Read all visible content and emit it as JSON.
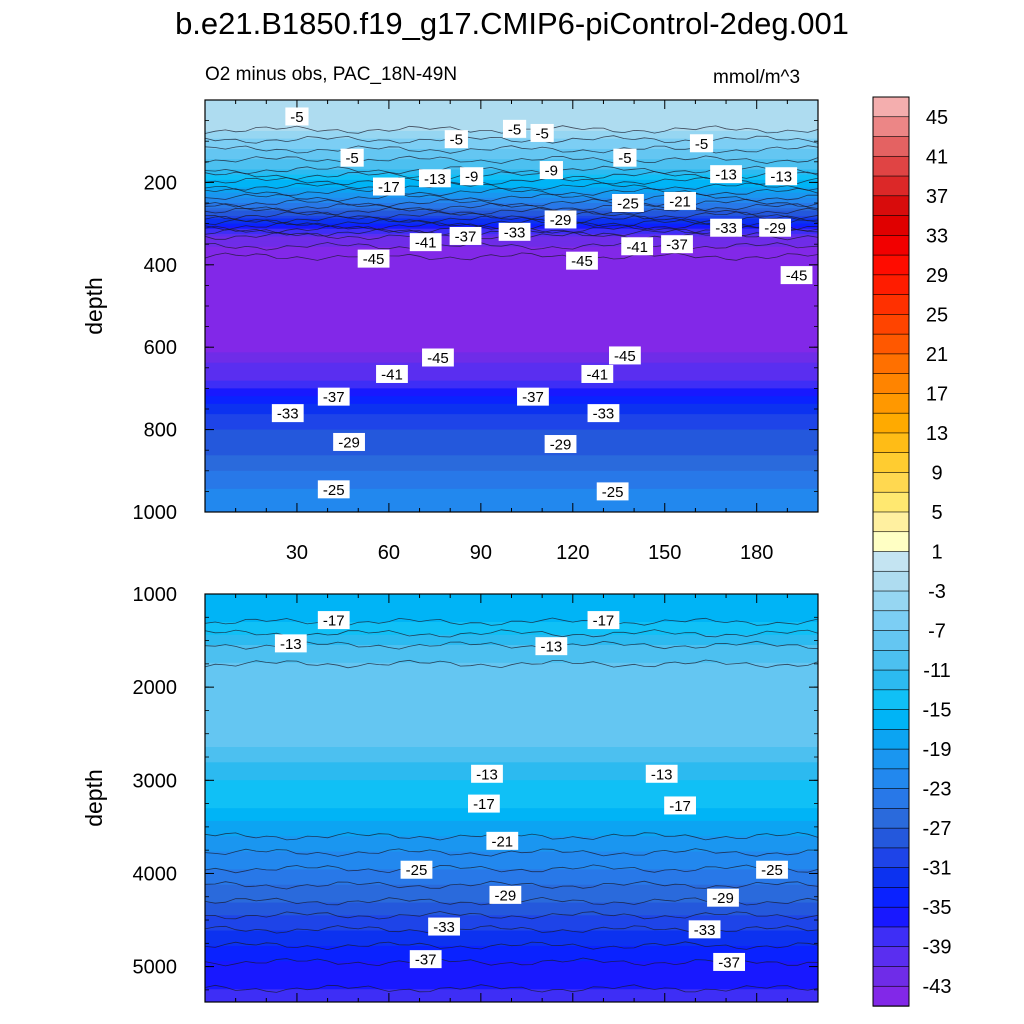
{
  "title": "b.e21.B1850.f19_g17.CMIP6-piControl-2deg.001",
  "subtitle": "O2 minus obs, PAC_18N-49N",
  "units": "mmol/m^3",
  "colors": {
    "levels": [
      -47,
      -45,
      -43,
      -41,
      -39,
      -37,
      -35,
      -33,
      -31,
      -29,
      -27,
      -25,
      -23,
      -21,
      -19,
      -17,
      -15,
      -13,
      -11,
      -9,
      -7,
      -5,
      -3,
      -1,
      1,
      3,
      5,
      7,
      9,
      11,
      13,
      15,
      17,
      19,
      21,
      23,
      25,
      27,
      29,
      31,
      33,
      35,
      37,
      39,
      41,
      43,
      45
    ],
    "fills": [
      "#8228e8",
      "#6f2ce8",
      "#5a2ef0",
      "#3e2ef6",
      "#1818ff",
      "#0a22ff",
      "#0c32f0",
      "#1e44e8",
      "#2458dc",
      "#2a6adc",
      "#2878e8",
      "#2288ee",
      "#1a96f0",
      "#0ca4f2",
      "#00b4f6",
      "#10c0f6",
      "#2cbaf0",
      "#4cc0f0",
      "#64c6f2",
      "#7ccef4",
      "#96d6f2",
      "#aedcf0",
      "#c4e4f2",
      "#ffffc4",
      "#fff0a0",
      "#ffe870",
      "#ffd850",
      "#ffcc30",
      "#ffbc16",
      "#ffaa00",
      "#ff9800",
      "#ff8400",
      "#ff7000",
      "#ff5800",
      "#ff4400",
      "#ff3000",
      "#ff1c00",
      "#ff0c00",
      "#f20000",
      "#e00000",
      "#d80c0c",
      "#dc2828",
      "#e04444",
      "#e46262",
      "#ec8686",
      "#f4aeae"
    ]
  },
  "chart_data": [
    {
      "type": "contour",
      "panel": "upper",
      "ylabel": "depth",
      "xlabel": "",
      "xlim": [
        0,
        200
      ],
      "ylim": [
        0,
        1000
      ],
      "y_inverted": true,
      "xticks": [
        "30",
        "60",
        "90",
        "120",
        "150",
        "180"
      ],
      "xtick_values": [
        30,
        60,
        90,
        120,
        150,
        180
      ],
      "yticks": [
        "200",
        "400",
        "600",
        "800",
        "1000"
      ],
      "ytick_values": [
        200,
        400,
        600,
        800,
        1000
      ],
      "profile": [
        [
          0,
          -3
        ],
        [
          60,
          -4
        ],
        [
          120,
          -9
        ],
        [
          170,
          -13
        ],
        [
          210,
          -19
        ],
        [
          250,
          -25
        ],
        [
          290,
          -33
        ],
        [
          330,
          -43
        ],
        [
          380,
          -47
        ],
        [
          420,
          -47
        ],
        [
          600,
          -46
        ],
        [
          640,
          -43
        ],
        [
          680,
          -41
        ],
        [
          720,
          -37
        ],
        [
          760,
          -33
        ],
        [
          800,
          -31
        ],
        [
          860,
          -29
        ],
        [
          920,
          -26
        ],
        [
          1000,
          -23
        ]
      ],
      "contour_labels": [
        {
          "text": "-5",
          "x": 30,
          "y": 40
        },
        {
          "text": "-5",
          "x": 48,
          "y": 140
        },
        {
          "text": "-5",
          "x": 82,
          "y": 95
        },
        {
          "text": "-5",
          "x": 101,
          "y": 70
        },
        {
          "text": "-5",
          "x": 110,
          "y": 80
        },
        {
          "text": "-5",
          "x": 137,
          "y": 140
        },
        {
          "text": "-5",
          "x": 162,
          "y": 105
        },
        {
          "text": "-17",
          "x": 60,
          "y": 210
        },
        {
          "text": "-13",
          "x": 75,
          "y": 190
        },
        {
          "text": "-9",
          "x": 87,
          "y": 185
        },
        {
          "text": "-9",
          "x": 113,
          "y": 170
        },
        {
          "text": "-29",
          "x": 116,
          "y": 290
        },
        {
          "text": "-25",
          "x": 138,
          "y": 250
        },
        {
          "text": "-21",
          "x": 155,
          "y": 245
        },
        {
          "text": "-13",
          "x": 170,
          "y": 180
        },
        {
          "text": "-13",
          "x": 188,
          "y": 185
        },
        {
          "text": "-33",
          "x": 101,
          "y": 320
        },
        {
          "text": "-33",
          "x": 170,
          "y": 310
        },
        {
          "text": "-29",
          "x": 186,
          "y": 310
        },
        {
          "text": "-41",
          "x": 72,
          "y": 345
        },
        {
          "text": "-37",
          "x": 85,
          "y": 330
        },
        {
          "text": "-45",
          "x": 55,
          "y": 385
        },
        {
          "text": "-45",
          "x": 123,
          "y": 390
        },
        {
          "text": "-41",
          "x": 141,
          "y": 355
        },
        {
          "text": "-37",
          "x": 154,
          "y": 350
        },
        {
          "text": "-45",
          "x": 193,
          "y": 425
        },
        {
          "text": "-45",
          "x": 76,
          "y": 625
        },
        {
          "text": "-45",
          "x": 137,
          "y": 620
        },
        {
          "text": "-41",
          "x": 61,
          "y": 665
        },
        {
          "text": "-41",
          "x": 128,
          "y": 665
        },
        {
          "text": "-37",
          "x": 42,
          "y": 720
        },
        {
          "text": "-37",
          "x": 107,
          "y": 720
        },
        {
          "text": "-33",
          "x": 27,
          "y": 760
        },
        {
          "text": "-33",
          "x": 130,
          "y": 760
        },
        {
          "text": "-29",
          "x": 47,
          "y": 830
        },
        {
          "text": "-29",
          "x": 116,
          "y": 835
        },
        {
          "text": "-25",
          "x": 42,
          "y": 945
        },
        {
          "text": "-25",
          "x": 133,
          "y": 950
        }
      ]
    },
    {
      "type": "contour",
      "panel": "lower",
      "ylabel": "depth",
      "xlabel": "",
      "xlim": [
        0,
        200
      ],
      "ylim": [
        1000,
        5380
      ],
      "y_inverted": true,
      "yticks": [
        "1000",
        "2000",
        "3000",
        "4000",
        "5000"
      ],
      "ytick_values": [
        1000,
        2000,
        3000,
        4000,
        5000
      ],
      "profile": [
        [
          1000,
          -19
        ],
        [
          1300,
          -17
        ],
        [
          1550,
          -13
        ],
        [
          1750,
          -11
        ],
        [
          2650,
          -11
        ],
        [
          2800,
          -13
        ],
        [
          3000,
          -15
        ],
        [
          3300,
          -17
        ],
        [
          3600,
          -21
        ],
        [
          3950,
          -25
        ],
        [
          4300,
          -29
        ],
        [
          4600,
          -33
        ],
        [
          4950,
          -37
        ],
        [
          5380,
          -40
        ]
      ],
      "contour_labels": [
        {
          "text": "-17",
          "x": 42,
          "y": 1280
        },
        {
          "text": "-13",
          "x": 28,
          "y": 1530
        },
        {
          "text": "-17",
          "x": 130,
          "y": 1280
        },
        {
          "text": "-13",
          "x": 113,
          "y": 1560
        },
        {
          "text": "-13",
          "x": 92,
          "y": 2930
        },
        {
          "text": "-13",
          "x": 149,
          "y": 2930
        },
        {
          "text": "-17",
          "x": 91,
          "y": 3250
        },
        {
          "text": "-17",
          "x": 155,
          "y": 3270
        },
        {
          "text": "-21",
          "x": 97,
          "y": 3650
        },
        {
          "text": "-25",
          "x": 69,
          "y": 3960
        },
        {
          "text": "-25",
          "x": 185,
          "y": 3960
        },
        {
          "text": "-29",
          "x": 98,
          "y": 4230
        },
        {
          "text": "-29",
          "x": 169,
          "y": 4260
        },
        {
          "text": "-33",
          "x": 78,
          "y": 4570
        },
        {
          "text": "-33",
          "x": 163,
          "y": 4600
        },
        {
          "text": "-37",
          "x": 72,
          "y": 4920
        },
        {
          "text": "-37",
          "x": 171,
          "y": 4950
        }
      ]
    }
  ],
  "colorbar": {
    "labels": [
      "45",
      "41",
      "37",
      "33",
      "29",
      "25",
      "21",
      "17",
      "13",
      "9",
      "5",
      "1",
      "-3",
      "-7",
      "-11",
      "-15",
      "-19",
      "-23",
      "-27",
      "-31",
      "-35",
      "-39",
      "-43"
    ]
  }
}
